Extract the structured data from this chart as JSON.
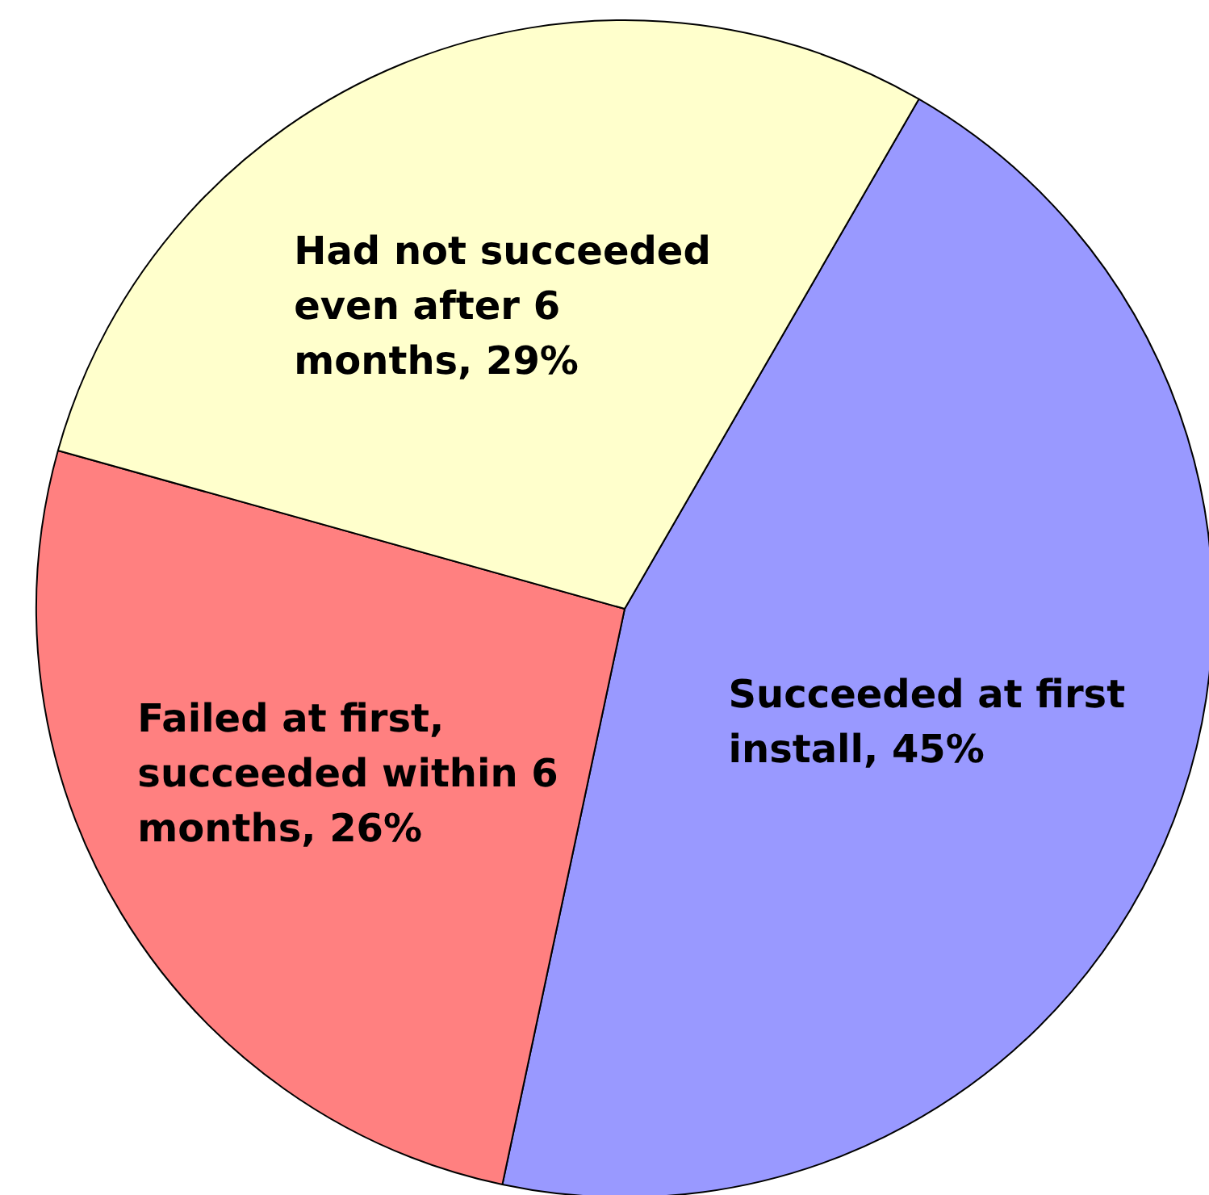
{
  "chart_data": {
    "type": "pie",
    "categories": [
      "Succeeded at first install",
      "Failed at first, succeeded within 6 months",
      "Had not succeeded even after 6 months"
    ],
    "values": [
      45,
      26,
      29
    ],
    "colors": [
      "#9999ff",
      "#ff8080",
      "#ffffcc"
    ],
    "value_labels": [
      "45%",
      "26%",
      "29%"
    ]
  }
}
